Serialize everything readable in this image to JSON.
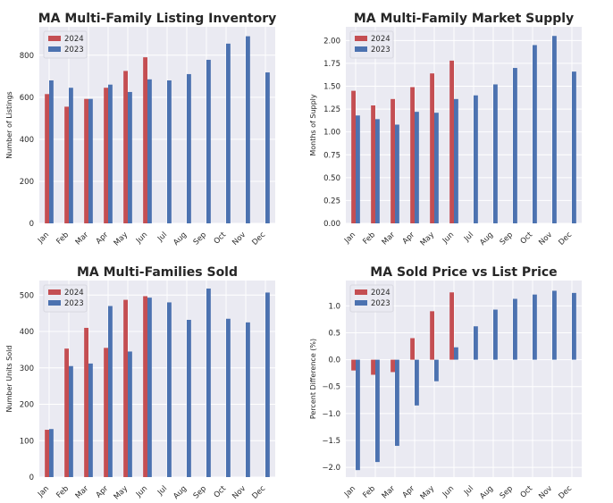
{
  "colors": {
    "plot_bg": "#eaeaf2",
    "grid": "#ffffff",
    "s2024": "#c44e52",
    "s2023": "#4c72b0"
  },
  "chart_data": [
    {
      "type": "bar",
      "title": "MA Multi-Family Listing Inventory",
      "ylabel": "Number of Listings",
      "xlabel": "",
      "categories": [
        "Jan",
        "Feb",
        "Mar",
        "Apr",
        "May",
        "Jun",
        "Jul",
        "Aug",
        "Sep",
        "Oct",
        "Nov",
        "Dec"
      ],
      "ylim": [
        0,
        935
      ],
      "yticks": [
        0,
        200,
        400,
        600,
        800
      ],
      "ytick_labels": [
        "0",
        "200",
        "400",
        "600",
        "800"
      ],
      "grid": true,
      "legend": "top-left",
      "series": [
        {
          "name": "2024",
          "values": [
            615,
            555,
            592,
            645,
            725,
            790,
            null,
            null,
            null,
            null,
            null,
            null
          ]
        },
        {
          "name": "2023",
          "values": [
            680,
            645,
            592,
            660,
            625,
            685,
            680,
            710,
            778,
            855,
            890,
            718
          ]
        }
      ]
    },
    {
      "type": "bar",
      "title": "MA Multi-Family Market Supply",
      "ylabel": "Months of Supply",
      "xlabel": "",
      "categories": [
        "Jan",
        "Feb",
        "Mar",
        "Apr",
        "May",
        "Jun",
        "Jul",
        "Aug",
        "Sep",
        "Oct",
        "Nov",
        "Dec"
      ],
      "ylim": [
        0,
        2.15
      ],
      "yticks": [
        0,
        0.25,
        0.5,
        0.75,
        1.0,
        1.25,
        1.5,
        1.75,
        2.0
      ],
      "ytick_labels": [
        "0.00",
        "0.25",
        "0.50",
        "0.75",
        "1.00",
        "1.25",
        "1.50",
        "1.75",
        "2.00"
      ],
      "grid": true,
      "legend": "top-left",
      "series": [
        {
          "name": "2024",
          "values": [
            1.45,
            1.29,
            1.36,
            1.49,
            1.64,
            1.78,
            null,
            null,
            null,
            null,
            null,
            null
          ]
        },
        {
          "name": "2023",
          "values": [
            1.18,
            1.14,
            1.08,
            1.22,
            1.21,
            1.36,
            1.4,
            1.52,
            1.7,
            1.95,
            2.05,
            1.66
          ]
        }
      ]
    },
    {
      "type": "bar",
      "title": "MA Multi-Families Sold",
      "ylabel": "Number Units Sold",
      "xlabel": "",
      "categories": [
        "Jan",
        "Feb",
        "Mar",
        "Apr",
        "May",
        "Jun",
        "Jul",
        "Aug",
        "Sep",
        "Oct",
        "Nov",
        "Dec"
      ],
      "ylim": [
        0,
        540
      ],
      "yticks": [
        0,
        100,
        200,
        300,
        400,
        500
      ],
      "ytick_labels": [
        "0",
        "100",
        "200",
        "300",
        "400",
        "500"
      ],
      "grid": true,
      "legend": "top-left",
      "series": [
        {
          "name": "2024",
          "values": [
            130,
            353,
            410,
            355,
            487,
            497,
            null,
            null,
            null,
            null,
            null,
            null
          ]
        },
        {
          "name": "2023",
          "values": [
            132,
            305,
            312,
            470,
            345,
            493,
            480,
            432,
            518,
            435,
            425,
            507
          ]
        }
      ]
    },
    {
      "type": "bar",
      "title": "MA Sold Price vs List Price",
      "ylabel": "Percent Difference (%)",
      "xlabel": "",
      "categories": [
        "Jan",
        "Feb",
        "Mar",
        "Apr",
        "May",
        "Jun",
        "Jul",
        "Aug",
        "Sep",
        "Oct",
        "Nov",
        "Dec"
      ],
      "ylim": [
        -2.18,
        1.47
      ],
      "yticks": [
        -2.0,
        -1.5,
        -1.0,
        -0.5,
        0.0,
        0.5,
        1.0
      ],
      "ytick_labels": [
        "−2.0",
        "−1.5",
        "−1.0",
        "−0.5",
        "0.0",
        "0.5",
        "1.0"
      ],
      "grid": true,
      "legend": "top-left",
      "series": [
        {
          "name": "2024",
          "values": [
            -0.2,
            -0.28,
            -0.23,
            0.4,
            0.9,
            1.25,
            null,
            null,
            null,
            null,
            null,
            null
          ]
        },
        {
          "name": "2023",
          "values": [
            -2.05,
            -1.9,
            -1.6,
            -0.85,
            -0.4,
            0.23,
            0.62,
            0.93,
            1.13,
            1.21,
            1.28,
            1.24
          ]
        }
      ]
    }
  ]
}
